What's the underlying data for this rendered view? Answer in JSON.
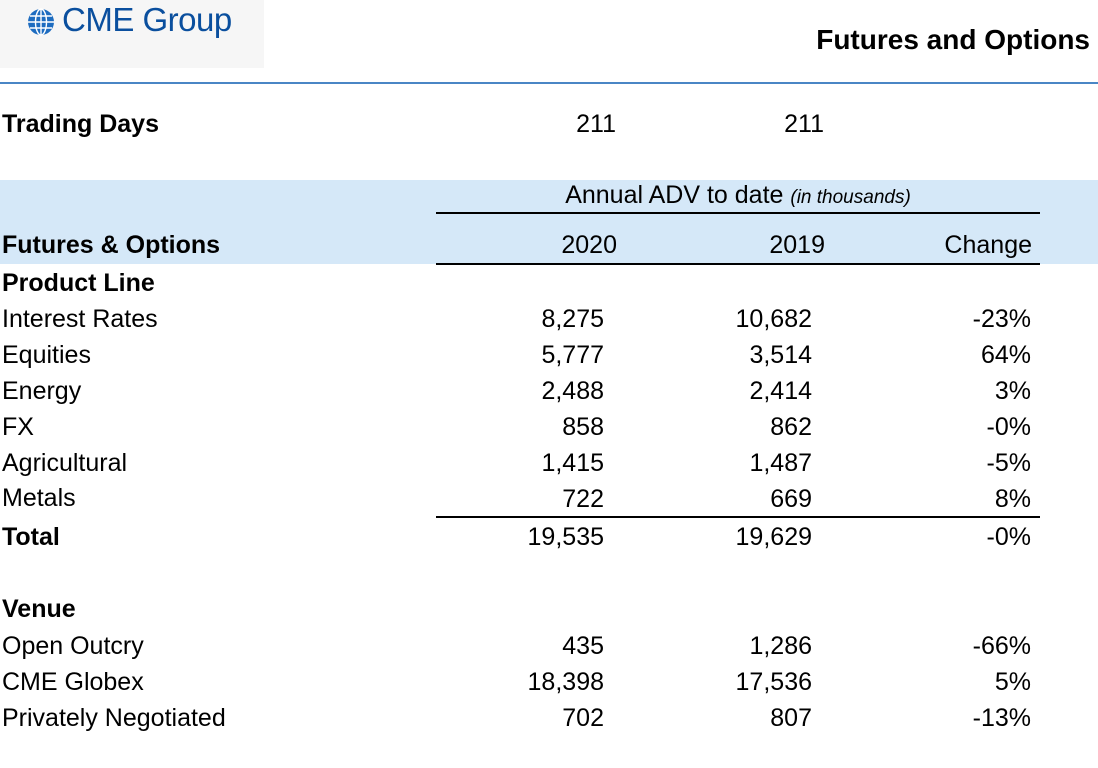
{
  "header": {
    "logo_text": "CME Group",
    "title": "Futures and Options"
  },
  "trading_days": {
    "label": "Trading Days",
    "value_2020": "211",
    "value_2019": "211"
  },
  "table": {
    "adv_title": "Annual ADV to date",
    "adv_note": "(in thousands)",
    "section_label": "Futures & Options",
    "col_2020": "2020",
    "col_2019": "2019",
    "col_change": "Change",
    "product_line": {
      "heading": "Product Line",
      "rows": [
        {
          "label": "Interest Rates",
          "v2020": "8,275",
          "v2019": "10,682",
          "change": "-23%"
        },
        {
          "label": "Equities",
          "v2020": "5,777",
          "v2019": "3,514",
          "change": "64%"
        },
        {
          "label": "Energy",
          "v2020": "2,488",
          "v2019": "2,414",
          "change": "3%"
        },
        {
          "label": "FX",
          "v2020": "858",
          "v2019": "862",
          "change": "-0%"
        },
        {
          "label": "Agricultural",
          "v2020": "1,415",
          "v2019": "1,487",
          "change": "-5%"
        },
        {
          "label": "Metals",
          "v2020": "722",
          "v2019": "669",
          "change": "8%"
        }
      ],
      "total": {
        "label": "Total",
        "v2020": "19,535",
        "v2019": "19,629",
        "change": "-0%"
      }
    },
    "venue": {
      "heading": "Venue",
      "rows": [
        {
          "label": "Open Outcry",
          "v2020": "435",
          "v2019": "1,286",
          "change": "-66%"
        },
        {
          "label": "CME Globex",
          "v2020": "18,398",
          "v2019": "17,536",
          "change": "5%"
        },
        {
          "label": "Privately Negotiated",
          "v2020": "702",
          "v2019": "807",
          "change": "-13%"
        }
      ]
    }
  }
}
